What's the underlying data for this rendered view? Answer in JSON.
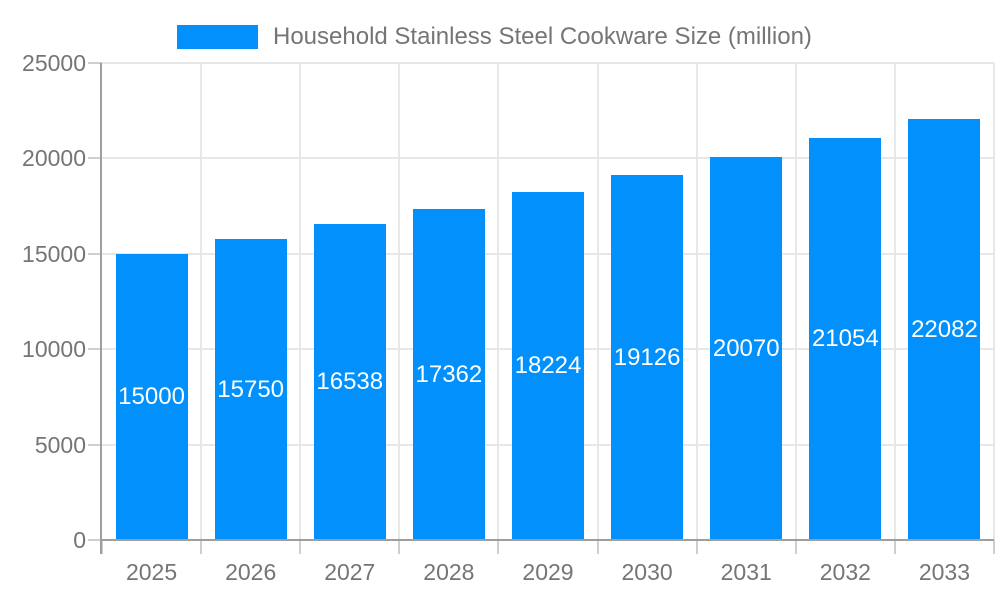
{
  "legend": {
    "label": "Household Stainless Steel Cookware Size (million)"
  },
  "chart_data": {
    "type": "bar",
    "title": "Household Stainless Steel Cookware Size (million)",
    "categories": [
      "2025",
      "2026",
      "2027",
      "2028",
      "2029",
      "2030",
      "2031",
      "2032",
      "2033"
    ],
    "values": [
      15000,
      15750,
      16538,
      17362,
      18224,
      19126,
      20070,
      21054,
      22082
    ],
    "bar_labels": [
      "15000",
      "15750",
      "16538",
      "17362",
      "18224",
      "19126",
      "20070",
      "21054",
      "22082"
    ],
    "xlabel": "",
    "ylabel": "",
    "ylim": [
      0,
      25000
    ],
    "yticks": [
      0,
      5000,
      10000,
      15000,
      20000,
      25000
    ],
    "ytick_labels": [
      "0",
      "5000",
      "10000",
      "15000",
      "20000",
      "25000"
    ],
    "grid": true,
    "legend_position": "top-left",
    "colors": {
      "bar": "#0190FC",
      "bar_label": "#FFFFFF",
      "axis_text": "#757575",
      "grid_line": "#E7E7E7",
      "axis_line": "#9E9E9E",
      "tick": "#CFCFCF"
    }
  }
}
